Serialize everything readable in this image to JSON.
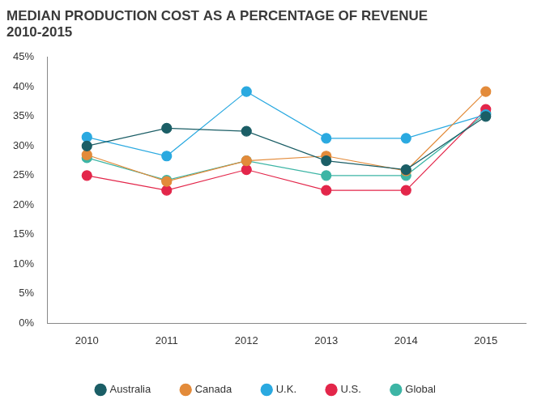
{
  "chart_data": {
    "type": "line",
    "title": [
      "MEDIAN PRODUCTION COST AS A PERCENTAGE OF REVENUE",
      "2010-2015"
    ],
    "categories": [
      "2010",
      "2011",
      "2012",
      "2013",
      "2014",
      "2015"
    ],
    "series": [
      {
        "name": "Australia",
        "color": "#1b5e66",
        "values": [
          30,
          33,
          32.5,
          27.5,
          26,
          35
        ]
      },
      {
        "name": "Canada",
        "color": "#e38b3a",
        "values": [
          28.5,
          24,
          27.5,
          28.3,
          25.8,
          39.2
        ]
      },
      {
        "name": "U.K.",
        "color": "#2aa9e0",
        "values": [
          31.5,
          28.3,
          39.2,
          31.3,
          31.3,
          35.3
        ]
      },
      {
        "name": "U.S.",
        "color": "#e3264a",
        "values": [
          25,
          22.5,
          26,
          22.5,
          22.5,
          36.2
        ]
      },
      {
        "name": "Global",
        "color": "#3db5a5",
        "values": [
          28,
          24.2,
          27.5,
          25,
          25,
          35.5
        ]
      }
    ],
    "ylim": [
      0,
      45
    ],
    "yticks": [
      {
        "value": 0,
        "label": "0%"
      },
      {
        "value": 5,
        "label": "5%"
      },
      {
        "value": 10,
        "label": "10%"
      },
      {
        "value": 15,
        "label": "15%"
      },
      {
        "value": 20,
        "label": "20%"
      },
      {
        "value": 25,
        "label": "25%"
      },
      {
        "value": 30,
        "label": "30%"
      },
      {
        "value": 35,
        "label": "35%"
      },
      {
        "value": 40,
        "label": "40%"
      },
      {
        "value": 45,
        "label": "45%"
      }
    ],
    "grid": false,
    "legend": "bottom",
    "marker": "circle"
  }
}
